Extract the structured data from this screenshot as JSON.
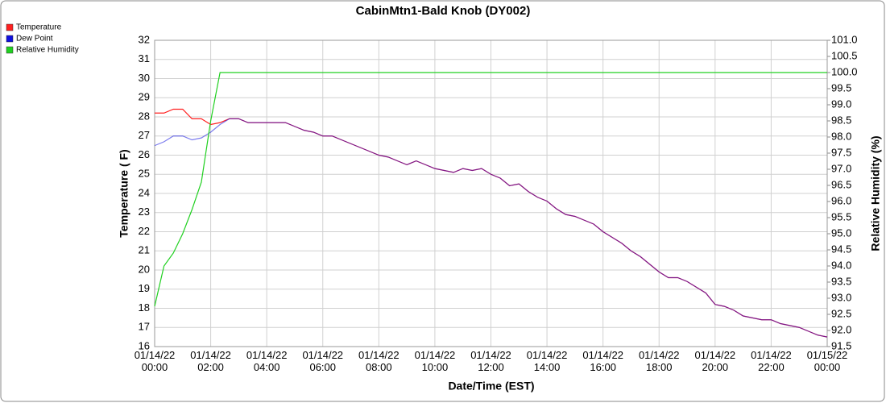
{
  "chart_data": {
    "type": "line",
    "title": "CabinMtn1-Bald Knob (DY002)",
    "x_label": "Date/Time (EST)",
    "y_label": "Temperature ( F)",
    "y2_label": "Relative Humidity (%)",
    "grid": true,
    "legend": "top-left",
    "x": [
      "01/14/22 00:00",
      "01/14/22 00:20",
      "01/14/22 00:40",
      "01/14/22 01:00",
      "01/14/22 01:20",
      "01/14/22 01:40",
      "01/14/22 02:00",
      "01/14/22 02:20",
      "01/14/22 02:40",
      "01/14/22 03:00",
      "01/14/22 03:20",
      "01/14/22 03:40",
      "01/14/22 04:00",
      "01/14/22 04:20",
      "01/14/22 04:40",
      "01/14/22 05:00",
      "01/14/22 05:20",
      "01/14/22 05:40",
      "01/14/22 06:00",
      "01/14/22 06:20",
      "01/14/22 06:40",
      "01/14/22 07:00",
      "01/14/22 07:20",
      "01/14/22 07:40",
      "01/14/22 08:00",
      "01/14/22 08:20",
      "01/14/22 08:40",
      "01/14/22 09:00",
      "01/14/22 09:20",
      "01/14/22 09:40",
      "01/14/22 10:00",
      "01/14/22 10:20",
      "01/14/22 10:40",
      "01/14/22 11:00",
      "01/14/22 11:20",
      "01/14/22 11:40",
      "01/14/22 12:00",
      "01/14/22 12:20",
      "01/14/22 12:40",
      "01/14/22 13:00",
      "01/14/22 13:20",
      "01/14/22 13:40",
      "01/14/22 14:00",
      "01/14/22 14:20",
      "01/14/22 14:40",
      "01/14/22 15:00",
      "01/14/22 15:20",
      "01/14/22 15:40",
      "01/14/22 16:00",
      "01/14/22 16:20",
      "01/14/22 16:40",
      "01/14/22 17:00",
      "01/14/22 17:20",
      "01/14/22 17:40",
      "01/14/22 18:00",
      "01/14/22 18:20",
      "01/14/22 18:40",
      "01/14/22 19:00",
      "01/14/22 19:20",
      "01/14/22 19:40",
      "01/14/22 20:00",
      "01/14/22 20:20",
      "01/14/22 20:40",
      "01/14/22 21:00",
      "01/14/22 21:20",
      "01/14/22 21:40",
      "01/14/22 22:00",
      "01/14/22 22:20",
      "01/14/22 22:40",
      "01/14/22 23:00",
      "01/14/22 23:20",
      "01/14/22 23:40",
      "01/15/22 00:00"
    ],
    "xlim": [
      "01/14/22 00:00",
      "01/15/22 00:00"
    ],
    "xticks": [
      "01/14/22 00:00",
      "01/14/22 02:00",
      "01/14/22 04:00",
      "01/14/22 06:00",
      "01/14/22 08:00",
      "01/14/22 10:00",
      "01/14/22 12:00",
      "01/14/22 14:00",
      "01/14/22 16:00",
      "01/14/22 18:00",
      "01/14/22 20:00",
      "01/14/22 22:00",
      "01/15/22 00:00"
    ],
    "ylim": [
      16,
      32
    ],
    "yticks": [
      16,
      17,
      18,
      19,
      20,
      21,
      22,
      23,
      24,
      25,
      26,
      27,
      28,
      29,
      30,
      31,
      32
    ],
    "y2lim": [
      91.5,
      101.0
    ],
    "y2ticks": [
      91.5,
      {
        "value": 92,
        "label": "92.0"
      },
      92.5,
      {
        "value": 93,
        "label": "93.0"
      },
      93.5,
      {
        "value": 94,
        "label": "94.0"
      },
      94.5,
      {
        "value": 95,
        "label": "95.0"
      },
      95.5,
      {
        "value": 96,
        "label": "96.0"
      },
      96.5,
      {
        "value": 97,
        "label": "97.0"
      },
      97.5,
      {
        "value": 98,
        "label": "98.0"
      },
      98.5,
      {
        "value": 99,
        "label": "99.0"
      },
      99.5,
      {
        "value": 100,
        "label": "100.0"
      },
      100.5,
      {
        "value": 101,
        "label": "101.0"
      }
    ],
    "series": [
      {
        "name": "Temperature",
        "color": "#ff2020",
        "axis": "y",
        "values": [
          28.2,
          28.2,
          28.4,
          28.4,
          27.9,
          27.9,
          27.6,
          27.7,
          27.9,
          27.9,
          27.7,
          27.7,
          27.7,
          27.7,
          27.7,
          27.5,
          27.3,
          27.2,
          27.0,
          27.0,
          26.8,
          26.6,
          26.4,
          26.2,
          26.0,
          25.9,
          25.7,
          25.5,
          25.7,
          25.5,
          25.3,
          25.2,
          25.1,
          25.3,
          25.2,
          25.3,
          25.0,
          24.8,
          24.4,
          24.5,
          24.1,
          23.8,
          23.6,
          23.2,
          22.9,
          22.8,
          22.6,
          22.4,
          22.0,
          21.7,
          21.4,
          21.0,
          20.7,
          20.3,
          19.9,
          19.6,
          19.6,
          19.4,
          19.1,
          18.8,
          18.2,
          18.1,
          17.9,
          17.6,
          17.5,
          17.4,
          17.4,
          17.2,
          17.1,
          17.0,
          16.8,
          16.6,
          16.5
        ]
      },
      {
        "name": "Dew Point",
        "color": "#1010e0",
        "axis": "y",
        "values": [
          26.5,
          26.7,
          27.0,
          27.0,
          26.8,
          26.9,
          27.2,
          27.6,
          27.9,
          27.9,
          27.7,
          27.7,
          27.7,
          27.7,
          27.7,
          27.5,
          27.3,
          27.2,
          27.0,
          27.0,
          26.8,
          26.6,
          26.4,
          26.2,
          26.0,
          25.9,
          25.7,
          25.5,
          25.7,
          25.5,
          25.3,
          25.2,
          25.1,
          25.3,
          25.2,
          25.3,
          25.0,
          24.8,
          24.4,
          24.5,
          24.1,
          23.8,
          23.6,
          23.2,
          22.9,
          22.8,
          22.6,
          22.4,
          22.0,
          21.7,
          21.4,
          21.0,
          20.7,
          20.3,
          19.9,
          19.6,
          19.6,
          19.4,
          19.1,
          18.8,
          18.2,
          18.1,
          17.9,
          17.6,
          17.5,
          17.4,
          17.4,
          17.2,
          17.1,
          17.0,
          16.8,
          16.6,
          16.5
        ]
      },
      {
        "name": "Relative Humidity",
        "color": "#20d020",
        "axis": "y2",
        "values": [
          92.75,
          94.0,
          94.4,
          95.0,
          95.75,
          96.6,
          98.5,
          100.0,
          100.0,
          100.0,
          100.0,
          100.0,
          100.0,
          100.0,
          100.0,
          100.0,
          100.0,
          100.0,
          100.0,
          100.0,
          100.0,
          100.0,
          100.0,
          100.0,
          100.0,
          100.0,
          100.0,
          100.0,
          100.0,
          100.0,
          100.0,
          100.0,
          100.0,
          100.0,
          100.0,
          100.0,
          100.0,
          100.0,
          100.0,
          100.0,
          100.0,
          100.0,
          100.0,
          100.0,
          100.0,
          100.0,
          100.0,
          100.0,
          100.0,
          100.0,
          100.0,
          100.0,
          100.0,
          100.0,
          100.0,
          100.0,
          100.0,
          100.0,
          100.0,
          100.0,
          100.0,
          100.0,
          100.0,
          100.0,
          100.0,
          100.0,
          100.0,
          100.0,
          100.0,
          100.0,
          100.0,
          100.0,
          100.0
        ]
      }
    ]
  }
}
